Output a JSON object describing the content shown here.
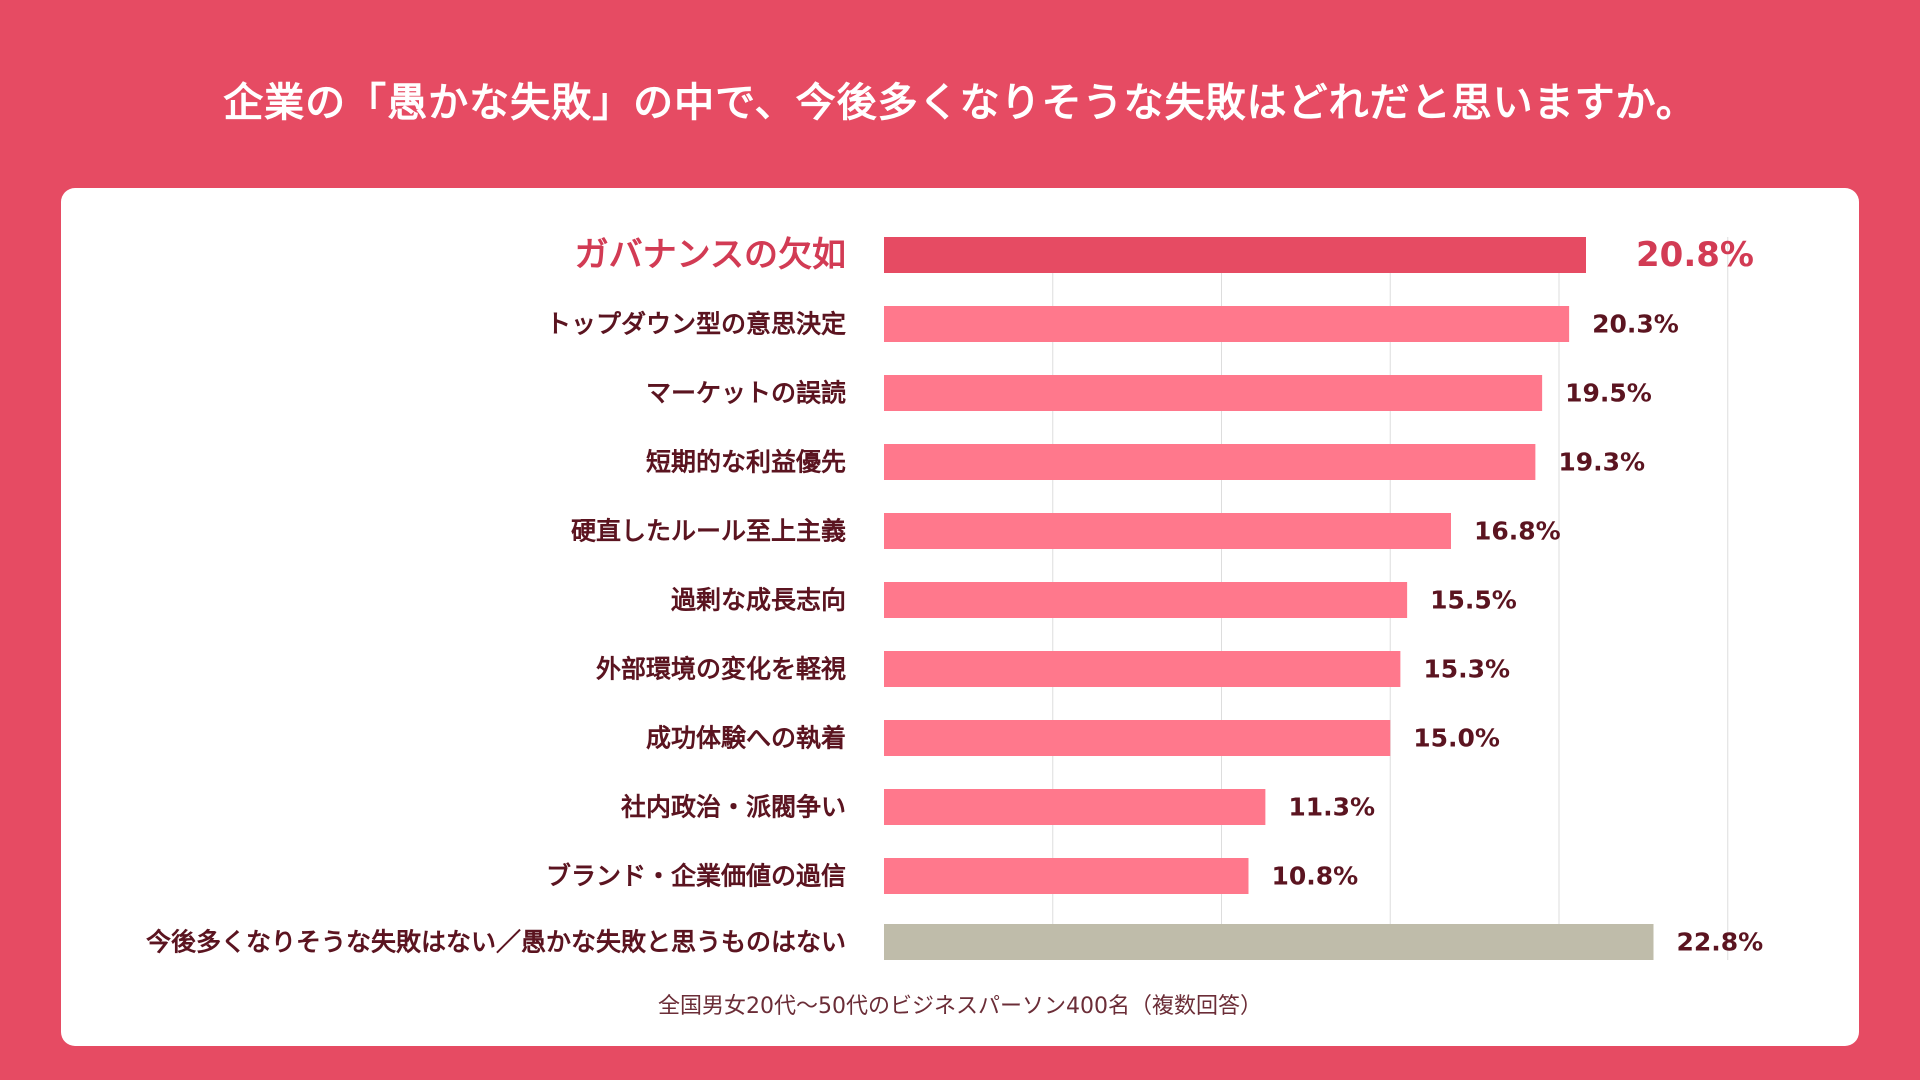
{
  "title": "企業の「愚かな失敗」の中で、今後多くなりそうな失敗はどれだと思いますか。",
  "note": "全国男女20代〜50代のビジネスパーソン400名（複数回答）",
  "colors": {
    "background": "#e64b63",
    "card": "#ffffff",
    "highlight_bar": "#e64b63",
    "bar": "#ff788c",
    "none_bar": "#bfbcaa",
    "label_text": "#5b1420",
    "highlight_text": "#d23b54",
    "grid": "#dddddd"
  },
  "chart_data": {
    "type": "bar",
    "orientation": "horizontal",
    "title": "企業の「愚かな失敗」の中で、今後多くなりそうな失敗はどれだと思いますか。",
    "unit": "%",
    "xlim": [
      0,
      25
    ],
    "grid": true,
    "categories": [
      "ガバナンスの欠如",
      "トップダウン型の意思決定",
      "マーケットの誤読",
      "短期的な利益優先",
      "硬直したルール至上主義",
      "過剰な成長志向",
      "外部環境の変化を軽視",
      "成功体験への執着",
      "社内政治・派閥争い",
      "ブランド・企業価値の過信",
      "今後多くなりそうな失敗はない／愚かな失敗と思うものはない"
    ],
    "values": [
      20.8,
      20.3,
      19.5,
      19.3,
      16.8,
      15.5,
      15.3,
      15.0,
      11.3,
      10.8,
      22.8
    ],
    "value_labels": [
      "20.8%",
      "20.3%",
      "19.5%",
      "19.3%",
      "16.8%",
      "15.5%",
      "15.3%",
      "15.0%",
      "11.3%",
      "10.8%",
      "22.8%"
    ],
    "highlight_index": 0,
    "none_index": 10
  }
}
